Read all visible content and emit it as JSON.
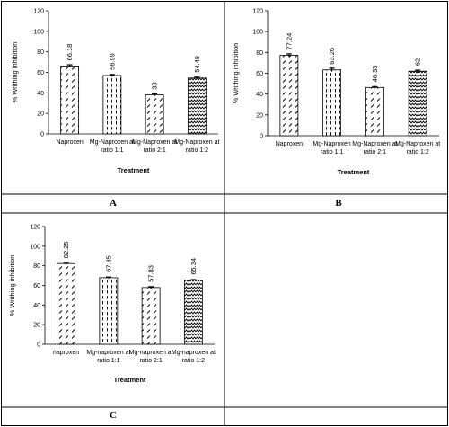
{
  "panels": [
    {
      "letter": "A"
    },
    {
      "letter": "B"
    },
    {
      "letter": "C"
    }
  ],
  "chart_data": [
    {
      "type": "bar",
      "categories": [
        "Naproxen",
        "Mg-Naproxen at ratio 1:1",
        "Mg-Naproxen at ratio 2:1",
        "Mg-Naproxen at ratio 1:2"
      ],
      "category_lines": [
        [
          "Naproxen"
        ],
        [
          "Mg-Naproxen at",
          "ratio 1:1"
        ],
        [
          "Mg-Naproxen at",
          "ratio 2:1"
        ],
        [
          "Mg-Naproxen at",
          "ratio 1:2"
        ]
      ],
      "values": [
        66.18,
        56.99,
        38,
        54.49
      ],
      "data_labels": [
        "66.18",
        "56.99",
        "38",
        "54.49"
      ],
      "errors": [
        1.2,
        1.0,
        1.1,
        0.9
      ],
      "patterns": [
        "diag",
        "dash",
        "diag",
        "wave"
      ],
      "xlabel": "Treatment",
      "ylabel": "% Writhing inhibition",
      "ylim": [
        0,
        120
      ],
      "yticks": [
        0,
        20,
        40,
        60,
        80,
        100,
        120
      ],
      "ytick_labels": [
        "0",
        "20",
        "40",
        "60",
        "80",
        "100",
        "120"
      ],
      "grid": false
    },
    {
      "type": "bar",
      "categories": [
        "Naproxen",
        "Mg-Naproxen ratio 1:1",
        "Mg-Naproxen at ratio 2:1",
        "Mg-Naproxen at ratio 1:2"
      ],
      "category_lines": [
        [
          "Naproxen"
        ],
        [
          "Mg-Naproxen",
          "ratio 1:1"
        ],
        [
          "Mg-Naproxen at",
          "ratio 2:1"
        ],
        [
          "Mg-Naproxen at",
          "ratio 1:2"
        ]
      ],
      "values": [
        77.24,
        63.26,
        46.35,
        62
      ],
      "data_labels": [
        "77.24",
        "63.26",
        "46.35",
        "62"
      ],
      "errors": [
        1.4,
        1.6,
        0.8,
        1.0
      ],
      "patterns": [
        "diag",
        "dash",
        "diag",
        "wave"
      ],
      "xlabel": "Treatment",
      "ylabel": "% Writhing inhibition",
      "ylim": [
        0,
        120
      ],
      "yticks": [
        0,
        20,
        40,
        60,
        80,
        100,
        120
      ],
      "ytick_labels": [
        "0",
        "20",
        "40",
        "60",
        "80",
        "100",
        "120"
      ],
      "grid": false
    },
    {
      "type": "bar",
      "categories": [
        "naproxen",
        "Mg-naproxen at ratio 1:1",
        "Mg-naproxen at ratio 2:1",
        "Mg-naproxen at ratio 1:2"
      ],
      "category_lines": [
        [
          "naproxen"
        ],
        [
          "Mg-naproxen at",
          "ratio 1:1"
        ],
        [
          "Mg-naproxen at",
          "ratio 2:1"
        ],
        [
          "Mg-naproxen at",
          "ratio 1:2"
        ]
      ],
      "values": [
        82.25,
        67.85,
        57.83,
        65.34
      ],
      "data_labels": [
        "82.25",
        "67.85",
        "57.83",
        "65.34"
      ],
      "errors": [
        1.0,
        0.7,
        0.9,
        0.6
      ],
      "patterns": [
        "diag",
        "dash",
        "diag",
        "wave"
      ],
      "xlabel": "Treatment",
      "ylabel": "% Writhing inhibition",
      "ylim": [
        0,
        120
      ],
      "yticks": [
        0,
        20,
        40,
        60,
        80,
        100,
        120
      ],
      "ytick_labels": [
        "0",
        "20",
        "40",
        "60",
        "80",
        "100",
        "120"
      ],
      "grid": false
    }
  ]
}
